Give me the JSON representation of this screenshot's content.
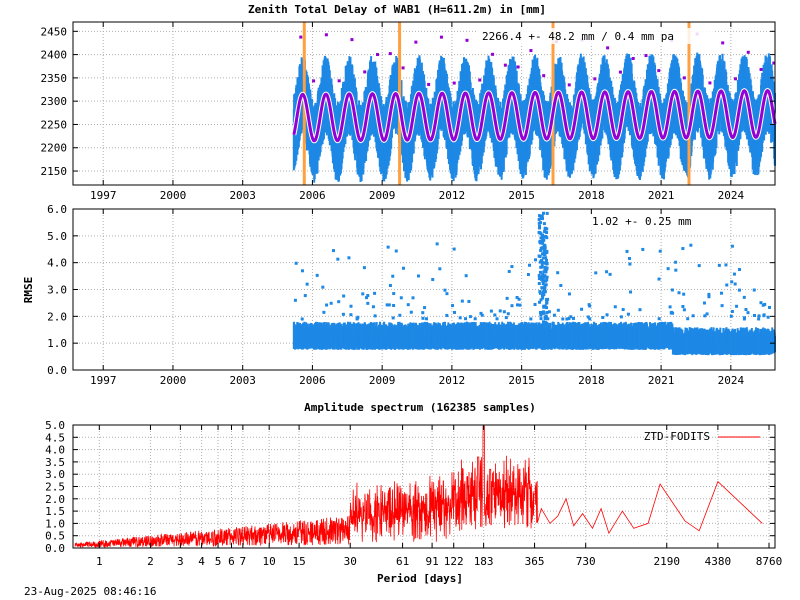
{
  "chart_data": [
    {
      "type": "scatter",
      "title": "Zenith Total Delay of WAB1 (H=611.2m) in [mm]",
      "annotation": "2266.4 +-  48.2 mm /  0.4 mm pa",
      "ylim": [
        2120,
        2470
      ],
      "yticks": [
        2150,
        2200,
        2250,
        2300,
        2350,
        2400,
        2450
      ],
      "xlim": [
        1995.7,
        2025.9
      ],
      "xticks": [
        {
          "value": 1997,
          "label": "1997"
        },
        {
          "value": 2000,
          "label": "2000"
        },
        {
          "value": 2003,
          "label": "2003"
        },
        {
          "value": 2006,
          "label": "2006"
        },
        {
          "value": 2009,
          "label": "2009"
        },
        {
          "value": 2012,
          "label": "2012"
        },
        {
          "value": 2015,
          "label": "2015"
        },
        {
          "value": 2018,
          "label": "2018"
        },
        {
          "value": 2021,
          "label": "2021"
        },
        {
          "value": 2024,
          "label": "2024"
        }
      ],
      "data_start": 2005.2,
      "data_end": 2025.9,
      "mean": 2266.4,
      "seasonal_amplitude": 50,
      "noise_range": 70,
      "trend_mm_per_year": 0.4,
      "equipment_changes": [
        2005.65,
        2009.75,
        2016.35,
        2022.2
      ],
      "colors": {
        "data": "#1e88e5",
        "fit": "#9400d3",
        "fit_edge": "#ffffff",
        "outlier": "#9400d3",
        "change": "#ffa040"
      }
    },
    {
      "type": "scatter",
      "ylabel": "RMSE",
      "annotation": "1.02 +-  0.25 mm",
      "ylim": [
        0.0,
        6.0
      ],
      "yticks": [
        {
          "value": 0,
          "label": "0.0"
        },
        {
          "value": 1,
          "label": "1.0"
        },
        {
          "value": 2,
          "label": "2.0"
        },
        {
          "value": 3,
          "label": "3.0"
        },
        {
          "value": 4,
          "label": "4.0"
        },
        {
          "value": 5,
          "label": "5.0"
        },
        {
          "value": 6,
          "label": "6.0"
        }
      ],
      "xlim": [
        1995.7,
        2025.9
      ],
      "xticks": [
        {
          "value": 1997,
          "label": "1997"
        },
        {
          "value": 2000,
          "label": "2000"
        },
        {
          "value": 2003,
          "label": "2003"
        },
        {
          "value": 2006,
          "label": "2006"
        },
        {
          "value": 2009,
          "label": "2009"
        },
        {
          "value": 2012,
          "label": "2012"
        },
        {
          "value": 2015,
          "label": "2015"
        },
        {
          "value": 2018,
          "label": "2018"
        },
        {
          "value": 2021,
          "label": "2021"
        },
        {
          "value": 2024,
          "label": "2024"
        }
      ],
      "mean": 1.02,
      "std": 0.25,
      "colors": {
        "data": "#1e88e5"
      }
    },
    {
      "type": "line",
      "title": "Amplitude spectrum (162385 samples)",
      "xlabel": "Period [days]",
      "legend": "ZTD-FODITS",
      "legend_position": "top-right",
      "ylim": [
        0.0,
        5.0
      ],
      "yticks": [
        {
          "value": 0.0,
          "label": "0.0"
        },
        {
          "value": 0.5,
          "label": "0.5"
        },
        {
          "value": 1.0,
          "label": "1.0"
        },
        {
          "value": 1.5,
          "label": "1.5"
        },
        {
          "value": 2.0,
          "label": "2.0"
        },
        {
          "value": 2.5,
          "label": "2.5"
        },
        {
          "value": 3.0,
          "label": "3.0"
        },
        {
          "value": 3.5,
          "label": "3.5"
        },
        {
          "value": 4.0,
          "label": "4.0"
        },
        {
          "value": 4.5,
          "label": "4.5"
        },
        {
          "value": 5.0,
          "label": "5.0"
        }
      ],
      "x_scale": "log",
      "xlim": [
        0.7,
        9500
      ],
      "xticks": [
        1,
        2,
        3,
        4,
        5,
        6,
        7,
        10,
        15,
        30,
        61,
        91,
        122,
        183,
        365,
        730,
        2190,
        4380,
        8760
      ],
      "peaks": [
        {
          "period": 183,
          "amplitude": 4.95
        },
        {
          "period": 200,
          "amplitude": 3.2
        },
        {
          "period": 170,
          "amplitude": 3.7
        },
        {
          "period": 365,
          "amplitude": 2.2
        },
        {
          "period": 730,
          "amplitude": 1.8
        },
        {
          "period": 4380,
          "amplitude": 2.7
        }
      ],
      "tail": [
        {
          "period": 400,
          "amplitude": 1.6
        },
        {
          "period": 450,
          "amplitude": 1.0
        },
        {
          "period": 500,
          "amplitude": 1.3
        },
        {
          "period": 560,
          "amplitude": 2.0
        },
        {
          "period": 620,
          "amplitude": 0.9
        },
        {
          "period": 700,
          "amplitude": 1.4
        },
        {
          "period": 800,
          "amplitude": 0.8
        },
        {
          "period": 900,
          "amplitude": 1.6
        },
        {
          "period": 1000,
          "amplitude": 0.6
        },
        {
          "period": 1200,
          "amplitude": 1.5
        },
        {
          "period": 1400,
          "amplitude": 0.8
        },
        {
          "period": 1700,
          "amplitude": 1.0
        },
        {
          "period": 2000,
          "amplitude": 2.6
        },
        {
          "period": 2800,
          "amplitude": 1.1
        },
        {
          "period": 3400,
          "amplitude": 0.7
        },
        {
          "period": 4380,
          "amplitude": 2.7
        },
        {
          "period": 8000,
          "amplitude": 1.0
        }
      ],
      "colors": {
        "line": "#ff0000"
      }
    }
  ],
  "footer": {
    "timestamp": "23-Aug-2025 08:46:16"
  }
}
